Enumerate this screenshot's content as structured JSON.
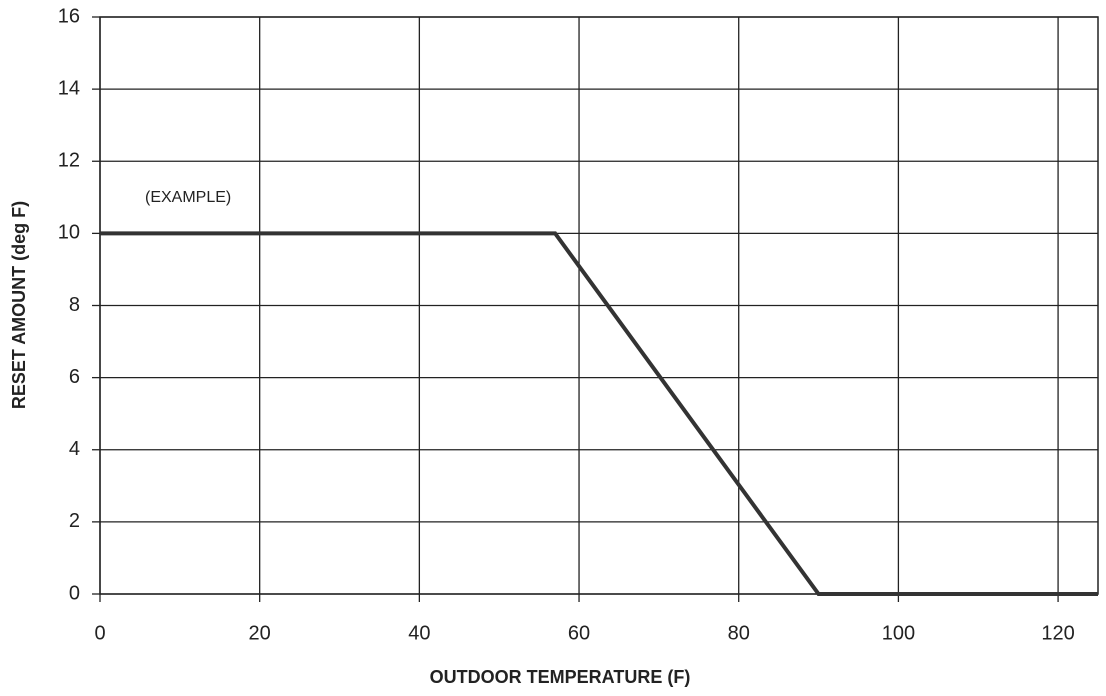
{
  "chart_data": {
    "type": "line",
    "x_label": "OUTDOOR TEMPERATURE (F)",
    "y_label": "RESET AMOUNT  (deg F)",
    "annotation": "(EXAMPLE)",
    "x": [
      0,
      57,
      90,
      125
    ],
    "series": [
      {
        "color": "#333333",
        "values": [
          10,
          10,
          0,
          0
        ]
      }
    ],
    "xlim": [
      0,
      125
    ],
    "xticks": [
      0,
      20,
      40,
      60,
      80,
      100,
      120
    ],
    "ylim": [
      0,
      16
    ],
    "yticks": [
      0,
      2,
      4,
      6,
      8,
      10,
      12,
      14,
      16
    ],
    "grid": true
  }
}
